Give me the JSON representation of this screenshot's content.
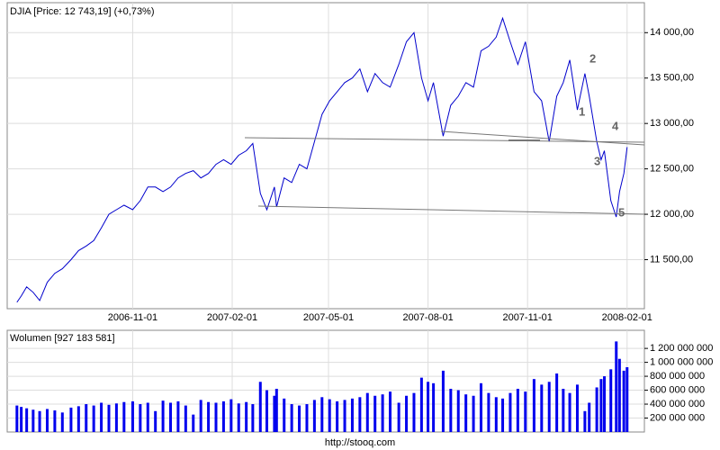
{
  "chart_data": [
    {
      "type": "line",
      "title": "DJIA [Price: 12 743,19] (+0,73%)",
      "color": "#0000cc",
      "grid": true,
      "annotations": [
        "1",
        "2",
        "3",
        "4",
        "5"
      ],
      "x": [
        "2006-07-17",
        "2006-07-21",
        "2006-07-26",
        "2006-08-01",
        "2006-08-07",
        "2006-08-14",
        "2006-08-21",
        "2006-08-28",
        "2006-09-05",
        "2006-09-12",
        "2006-09-19",
        "2006-09-26",
        "2006-10-03",
        "2006-10-10",
        "2006-10-17",
        "2006-10-24",
        "2006-11-01",
        "2006-11-08",
        "2006-11-15",
        "2006-11-22",
        "2006-11-29",
        "2006-12-06",
        "2006-12-13",
        "2006-12-20",
        "2006-12-27",
        "2007-01-03",
        "2007-01-10",
        "2007-01-17",
        "2007-01-24",
        "2007-01-31",
        "2007-02-07",
        "2007-02-14",
        "2007-02-20",
        "2007-02-27",
        "2007-03-05",
        "2007-03-12",
        "2007-03-14",
        "2007-03-21",
        "2007-03-28",
        "2007-04-04",
        "2007-04-11",
        "2007-04-18",
        "2007-04-25",
        "2007-05-02",
        "2007-05-09",
        "2007-05-16",
        "2007-05-23",
        "2007-05-30",
        "2007-06-06",
        "2007-06-13",
        "2007-06-20",
        "2007-06-27",
        "2007-07-05",
        "2007-07-12",
        "2007-07-19",
        "2007-07-26",
        "2007-08-01",
        "2007-08-06",
        "2007-08-15",
        "2007-08-22",
        "2007-08-29",
        "2007-09-05",
        "2007-09-12",
        "2007-09-19",
        "2007-09-26",
        "2007-10-03",
        "2007-10-09",
        "2007-10-16",
        "2007-10-23",
        "2007-10-30",
        "2007-11-07",
        "2007-11-14",
        "2007-11-21",
        "2007-11-28",
        "2007-12-04",
        "2007-12-10",
        "2007-12-17",
        "2007-12-24",
        "2007-12-28",
        "2008-01-04",
        "2008-01-08",
        "2008-01-11",
        "2008-01-17",
        "2008-01-22",
        "2008-01-25",
        "2008-01-29",
        "2008-02-01"
      ],
      "values": [
        11030,
        11100,
        11200,
        11140,
        11050,
        11250,
        11350,
        11400,
        11500,
        11600,
        11650,
        11710,
        11850,
        12000,
        12050,
        12100,
        12050,
        12150,
        12300,
        12300,
        12250,
        12300,
        12400,
        12450,
        12480,
        12400,
        12450,
        12550,
        12600,
        12550,
        12650,
        12700,
        12780,
        12230,
        12050,
        12300,
        12080,
        12400,
        12350,
        12550,
        12500,
        12800,
        13100,
        13250,
        13350,
        13450,
        13500,
        13600,
        13350,
        13550,
        13450,
        13400,
        13650,
        13900,
        14000,
        13500,
        13250,
        13450,
        12860,
        13200,
        13300,
        13450,
        13400,
        13800,
        13850,
        13950,
        14160,
        13900,
        13650,
        13900,
        13350,
        13250,
        12800,
        13300,
        13450,
        13700,
        13150,
        13550,
        13300,
        12800,
        12600,
        12700,
        12150,
        11970,
        12250,
        12450,
        12740
      ],
      "xlim": [
        "2006-07-08",
        "2008-02-17"
      ],
      "xticks": [
        "2006-11-01",
        "2007-02-01",
        "2007-05-01",
        "2007-08-01",
        "2007-11-01",
        "2008-02-01"
      ],
      "ylim": [
        10960,
        14330
      ],
      "yticks": [
        {
          "value": 11500,
          "label": "11 500,00"
        },
        {
          "value": 12000,
          "label": "12 000,00"
        },
        {
          "value": 12500,
          "label": "12 500,00"
        },
        {
          "value": 13000,
          "label": "13 000,00"
        },
        {
          "value": 13500,
          "label": "13 500,00"
        },
        {
          "value": 14000,
          "label": "14 000,00"
        }
      ]
    },
    {
      "type": "bar",
      "title": "Wolumen [927 183 581]",
      "color": "#0000ee",
      "grid": true,
      "footer": "http://stooq.com",
      "x": [
        "2006-07-17",
        "2006-07-21",
        "2006-07-26",
        "2006-08-01",
        "2006-08-07",
        "2006-08-14",
        "2006-08-21",
        "2006-08-28",
        "2006-09-05",
        "2006-09-12",
        "2006-09-19",
        "2006-09-26",
        "2006-10-03",
        "2006-10-10",
        "2006-10-17",
        "2006-10-24",
        "2006-11-01",
        "2006-11-08",
        "2006-11-15",
        "2006-11-22",
        "2006-11-29",
        "2006-12-06",
        "2006-12-13",
        "2006-12-20",
        "2006-12-27",
        "2007-01-03",
        "2007-01-10",
        "2007-01-17",
        "2007-01-24",
        "2007-01-31",
        "2007-02-07",
        "2007-02-14",
        "2007-02-20",
        "2007-02-27",
        "2007-03-05",
        "2007-03-12",
        "2007-03-14",
        "2007-03-21",
        "2007-03-28",
        "2007-04-04",
        "2007-04-11",
        "2007-04-18",
        "2007-04-25",
        "2007-05-02",
        "2007-05-09",
        "2007-05-16",
        "2007-05-23",
        "2007-05-30",
        "2007-06-06",
        "2007-06-13",
        "2007-06-20",
        "2007-06-27",
        "2007-07-05",
        "2007-07-12",
        "2007-07-19",
        "2007-07-26",
        "2007-08-01",
        "2007-08-06",
        "2007-08-15",
        "2007-08-22",
        "2007-08-29",
        "2007-09-05",
        "2007-09-12",
        "2007-09-19",
        "2007-09-26",
        "2007-10-03",
        "2007-10-09",
        "2007-10-16",
        "2007-10-23",
        "2007-10-30",
        "2007-11-07",
        "2007-11-14",
        "2007-11-21",
        "2007-11-28",
        "2007-12-04",
        "2007-12-10",
        "2007-12-17",
        "2007-12-24",
        "2007-12-28",
        "2008-01-04",
        "2008-01-08",
        "2008-01-11",
        "2008-01-17",
        "2008-01-22",
        "2008-01-25",
        "2008-01-29",
        "2008-02-01"
      ],
      "values": [
        380000000,
        360000000,
        340000000,
        320000000,
        300000000,
        330000000,
        310000000,
        280000000,
        350000000,
        370000000,
        400000000,
        380000000,
        420000000,
        390000000,
        410000000,
        430000000,
        440000000,
        400000000,
        420000000,
        300000000,
        450000000,
        420000000,
        440000000,
        380000000,
        250000000,
        460000000,
        430000000,
        420000000,
        440000000,
        470000000,
        410000000,
        430000000,
        400000000,
        720000000,
        600000000,
        520000000,
        620000000,
        480000000,
        400000000,
        380000000,
        400000000,
        460000000,
        500000000,
        470000000,
        440000000,
        460000000,
        480000000,
        500000000,
        560000000,
        520000000,
        540000000,
        580000000,
        420000000,
        520000000,
        560000000,
        780000000,
        720000000,
        700000000,
        880000000,
        620000000,
        600000000,
        540000000,
        520000000,
        700000000,
        560000000,
        500000000,
        480000000,
        560000000,
        620000000,
        580000000,
        760000000,
        680000000,
        720000000,
        840000000,
        620000000,
        560000000,
        680000000,
        300000000,
        420000000,
        640000000,
        760000000,
        800000000,
        900000000,
        1300000000,
        1050000000,
        880000000,
        930000000
      ],
      "xlim": [
        "2006-07-08",
        "2008-02-17"
      ],
      "ylim": [
        0,
        1460000000
      ],
      "yticks": [
        {
          "value": 200000000,
          "label": "200 000 000"
        },
        {
          "value": 400000000,
          "label": "400 000 000"
        },
        {
          "value": 600000000,
          "label": "600 000 000"
        },
        {
          "value": 800000000,
          "label": "800 000 000"
        },
        {
          "value": 1000000000,
          "label": "1 000 000 000"
        },
        {
          "value": 1200000000,
          "label": "1 200 000 000"
        }
      ]
    }
  ]
}
